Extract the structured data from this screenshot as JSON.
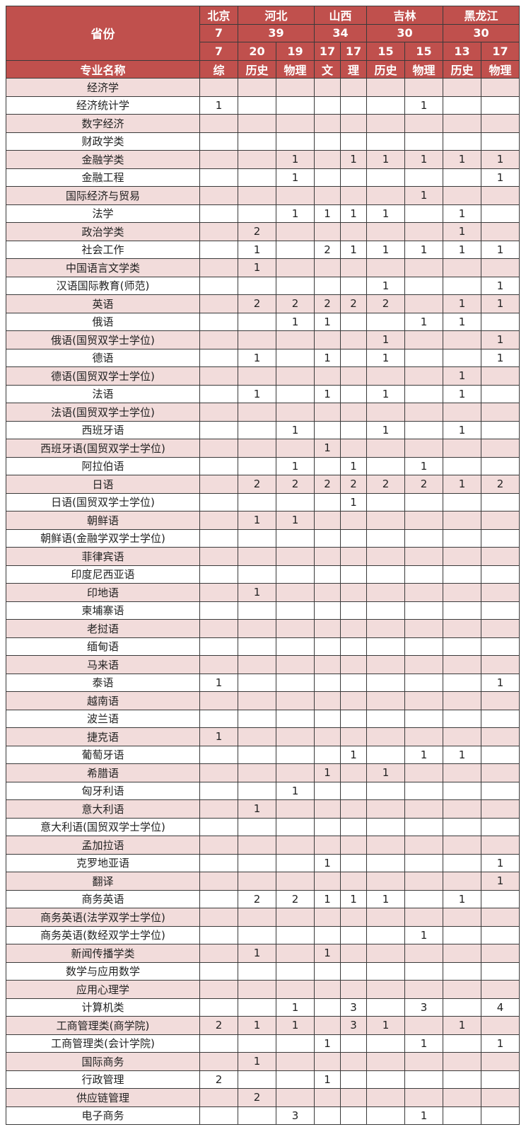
{
  "header": {
    "province_label": "省份",
    "major_label": "专业名称",
    "provinces": [
      {
        "name": "北京",
        "total": "7",
        "span": 1
      },
      {
        "name": "河北",
        "total": "39",
        "span": 2
      },
      {
        "name": "山西",
        "total": "34",
        "span": 2
      },
      {
        "name": "吉林",
        "total": "30",
        "span": 2
      },
      {
        "name": "黑龙江",
        "total": "30",
        "span": 2
      }
    ],
    "columns": [
      {
        "count": "7",
        "type": "综"
      },
      {
        "count": "20",
        "type": "历史"
      },
      {
        "count": "19",
        "type": "物理"
      },
      {
        "count": "17",
        "type": "文"
      },
      {
        "count": "17",
        "type": "理"
      },
      {
        "count": "15",
        "type": "历史"
      },
      {
        "count": "15",
        "type": "物理"
      },
      {
        "count": "13",
        "type": "历史"
      },
      {
        "count": "17",
        "type": "物理"
      }
    ]
  },
  "rows": [
    {
      "name": "经济学",
      "values": [
        "",
        "",
        "",
        "",
        "",
        "",
        "",
        "",
        ""
      ]
    },
    {
      "name": "经济统计学",
      "values": [
        "1",
        "",
        "",
        "",
        "",
        "",
        "1",
        "",
        ""
      ]
    },
    {
      "name": "数字经济",
      "values": [
        "",
        "",
        "",
        "",
        "",
        "",
        "",
        "",
        ""
      ]
    },
    {
      "name": "财政学类",
      "values": [
        "",
        "",
        "",
        "",
        "",
        "",
        "",
        "",
        ""
      ]
    },
    {
      "name": "金融学类",
      "values": [
        "",
        "",
        "1",
        "",
        "1",
        "1",
        "1",
        "1",
        "1"
      ]
    },
    {
      "name": "金融工程",
      "values": [
        "",
        "",
        "1",
        "",
        "",
        "",
        "",
        "",
        "1"
      ]
    },
    {
      "name": "国际经济与贸易",
      "values": [
        "",
        "",
        "",
        "",
        "",
        "",
        "1",
        "",
        ""
      ]
    },
    {
      "name": "法学",
      "values": [
        "",
        "",
        "1",
        "1",
        "1",
        "1",
        "",
        "1",
        ""
      ]
    },
    {
      "name": "政治学类",
      "values": [
        "",
        "2",
        "",
        "",
        "",
        "",
        "",
        "1",
        ""
      ]
    },
    {
      "name": "社会工作",
      "values": [
        "",
        "1",
        "",
        "2",
        "1",
        "1",
        "1",
        "1",
        "1"
      ]
    },
    {
      "name": "中国语言文学类",
      "values": [
        "",
        "1",
        "",
        "",
        "",
        "",
        "",
        "",
        ""
      ]
    },
    {
      "name": "汉语国际教育(师范)",
      "values": [
        "",
        "",
        "",
        "",
        "",
        "1",
        "",
        "",
        "1"
      ]
    },
    {
      "name": "英语",
      "values": [
        "",
        "2",
        "2",
        "2",
        "2",
        "2",
        "",
        "1",
        "1"
      ]
    },
    {
      "name": "俄语",
      "values": [
        "",
        "",
        "1",
        "1",
        "",
        "",
        "1",
        "1",
        ""
      ]
    },
    {
      "name": "俄语(国贸双学士学位)",
      "values": [
        "",
        "",
        "",
        "",
        "",
        "1",
        "",
        "",
        "1"
      ]
    },
    {
      "name": "德语",
      "values": [
        "",
        "1",
        "",
        "1",
        "",
        "1",
        "",
        "",
        "1"
      ]
    },
    {
      "name": "德语(国贸双学士学位)",
      "values": [
        "",
        "",
        "",
        "",
        "",
        "",
        "",
        "1",
        ""
      ]
    },
    {
      "name": "法语",
      "values": [
        "",
        "1",
        "",
        "1",
        "",
        "1",
        "",
        "1",
        ""
      ]
    },
    {
      "name": "法语(国贸双学士学位)",
      "values": [
        "",
        "",
        "",
        "",
        "",
        "",
        "",
        "",
        ""
      ]
    },
    {
      "name": "西班牙语",
      "values": [
        "",
        "",
        "1",
        "",
        "",
        "1",
        "",
        "1",
        ""
      ]
    },
    {
      "name": "西班牙语(国贸双学士学位)",
      "values": [
        "",
        "",
        "",
        "1",
        "",
        "",
        "",
        "",
        ""
      ]
    },
    {
      "name": "阿拉伯语",
      "values": [
        "",
        "",
        "1",
        "",
        "1",
        "",
        "1",
        "",
        ""
      ]
    },
    {
      "name": "日语",
      "values": [
        "",
        "2",
        "2",
        "2",
        "2",
        "2",
        "2",
        "1",
        "2"
      ]
    },
    {
      "name": "日语(国贸双学士学位)",
      "values": [
        "",
        "",
        "",
        "",
        "1",
        "",
        "",
        "",
        ""
      ]
    },
    {
      "name": "朝鲜语",
      "values": [
        "",
        "1",
        "1",
        "",
        "",
        "",
        "",
        "",
        ""
      ]
    },
    {
      "name": "朝鲜语(金融学双学士学位)",
      "values": [
        "",
        "",
        "",
        "",
        "",
        "",
        "",
        "",
        ""
      ]
    },
    {
      "name": "菲律宾语",
      "values": [
        "",
        "",
        "",
        "",
        "",
        "",
        "",
        "",
        ""
      ]
    },
    {
      "name": "印度尼西亚语",
      "values": [
        "",
        "",
        "",
        "",
        "",
        "",
        "",
        "",
        ""
      ]
    },
    {
      "name": "印地语",
      "values": [
        "",
        "1",
        "",
        "",
        "",
        "",
        "",
        "",
        ""
      ]
    },
    {
      "name": "柬埔寨语",
      "values": [
        "",
        "",
        "",
        "",
        "",
        "",
        "",
        "",
        ""
      ]
    },
    {
      "name": "老挝语",
      "values": [
        "",
        "",
        "",
        "",
        "",
        "",
        "",
        "",
        ""
      ]
    },
    {
      "name": "缅甸语",
      "values": [
        "",
        "",
        "",
        "",
        "",
        "",
        "",
        "",
        ""
      ]
    },
    {
      "name": "马来语",
      "values": [
        "",
        "",
        "",
        "",
        "",
        "",
        "",
        "",
        ""
      ]
    },
    {
      "name": "泰语",
      "values": [
        "1",
        "",
        "",
        "",
        "",
        "",
        "",
        "",
        "1"
      ]
    },
    {
      "name": "越南语",
      "values": [
        "",
        "",
        "",
        "",
        "",
        "",
        "",
        "",
        ""
      ]
    },
    {
      "name": "波兰语",
      "values": [
        "",
        "",
        "",
        "",
        "",
        "",
        "",
        "",
        ""
      ]
    },
    {
      "name": "捷克语",
      "values": [
        "1",
        "",
        "",
        "",
        "",
        "",
        "",
        "",
        ""
      ]
    },
    {
      "name": "葡萄牙语",
      "values": [
        "",
        "",
        "",
        "",
        "1",
        "",
        "1",
        "1",
        ""
      ]
    },
    {
      "name": "希腊语",
      "values": [
        "",
        "",
        "",
        "1",
        "",
        "1",
        "",
        "",
        ""
      ]
    },
    {
      "name": "匈牙利语",
      "values": [
        "",
        "",
        "1",
        "",
        "",
        "",
        "",
        "",
        ""
      ]
    },
    {
      "name": "意大利语",
      "values": [
        "",
        "1",
        "",
        "",
        "",
        "",
        "",
        "",
        ""
      ]
    },
    {
      "name": "意大利语(国贸双学士学位)",
      "values": [
        "",
        "",
        "",
        "",
        "",
        "",
        "",
        "",
        ""
      ]
    },
    {
      "name": "孟加拉语",
      "values": [
        "",
        "",
        "",
        "",
        "",
        "",
        "",
        "",
        ""
      ]
    },
    {
      "name": "克罗地亚语",
      "values": [
        "",
        "",
        "",
        "1",
        "",
        "",
        "",
        "",
        "1"
      ]
    },
    {
      "name": "翻译",
      "values": [
        "",
        "",
        "",
        "",
        "",
        "",
        "",
        "",
        "1"
      ]
    },
    {
      "name": "商务英语",
      "values": [
        "",
        "2",
        "2",
        "1",
        "1",
        "1",
        "",
        "1",
        ""
      ]
    },
    {
      "name": "商务英语(法学双学士学位)",
      "values": [
        "",
        "",
        "",
        "",
        "",
        "",
        "",
        "",
        ""
      ]
    },
    {
      "name": "商务英语(数经双学士学位)",
      "values": [
        "",
        "",
        "",
        "",
        "",
        "",
        "1",
        "",
        ""
      ]
    },
    {
      "name": "新闻传播学类",
      "values": [
        "",
        "1",
        "",
        "1",
        "",
        "",
        "",
        "",
        ""
      ]
    },
    {
      "name": "数学与应用数学",
      "values": [
        "",
        "",
        "",
        "",
        "",
        "",
        "",
        "",
        ""
      ]
    },
    {
      "name": "应用心理学",
      "values": [
        "",
        "",
        "",
        "",
        "",
        "",
        "",
        "",
        ""
      ]
    },
    {
      "name": "计算机类",
      "values": [
        "",
        "",
        "1",
        "",
        "3",
        "",
        "3",
        "",
        "4"
      ]
    },
    {
      "name": "工商管理类(商学院)",
      "values": [
        "2",
        "1",
        "1",
        "",
        "3",
        "1",
        "",
        "1",
        ""
      ]
    },
    {
      "name": "工商管理类(会计学院)",
      "values": [
        "",
        "",
        "",
        "1",
        "",
        "",
        "1",
        "",
        "1"
      ]
    },
    {
      "name": "国际商务",
      "values": [
        "",
        "1",
        "",
        "",
        "",
        "",
        "",
        "",
        ""
      ]
    },
    {
      "name": "行政管理",
      "values": [
        "2",
        "",
        "",
        "1",
        "",
        "",
        "",
        "",
        ""
      ]
    },
    {
      "name": "供应链管理",
      "values": [
        "",
        "2",
        "",
        "",
        "",
        "",
        "",
        "",
        ""
      ]
    },
    {
      "name": "电子商务",
      "values": [
        "",
        "",
        "3",
        "",
        "",
        "",
        "1",
        "",
        ""
      ]
    }
  ],
  "colors": {
    "header_bg": "#c0504d",
    "stripe_bg": "#f2dcdb",
    "header_text": "#ffffff"
  }
}
